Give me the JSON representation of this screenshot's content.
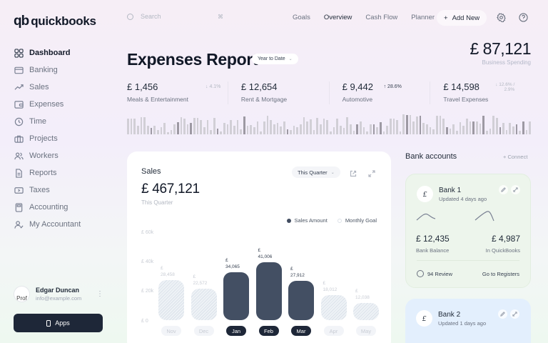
{
  "app": {
    "logo_mark": "qb",
    "logo_text": "quickbooks"
  },
  "sidebar": {
    "items": [
      {
        "label": "Dashboard",
        "icon": "grid-icon",
        "active": true
      },
      {
        "label": "Banking",
        "icon": "card-icon"
      },
      {
        "label": "Sales",
        "icon": "trend-up-icon"
      },
      {
        "label": "Expenses",
        "icon": "wallet-icon"
      },
      {
        "label": "Time",
        "icon": "clock-icon"
      },
      {
        "label": "Projects",
        "icon": "briefcase-icon"
      },
      {
        "label": "Workers",
        "icon": "users-icon"
      },
      {
        "label": "Reports",
        "icon": "document-icon"
      },
      {
        "label": "Taxes",
        "icon": "ticket-icon"
      },
      {
        "label": "Accounting",
        "icon": "calculator-icon"
      },
      {
        "label": "My Accountant",
        "icon": "user-check-icon"
      }
    ],
    "profile": {
      "name": "Edgar Duncan",
      "email": "info@example.com",
      "avatar_alt": "Prof"
    },
    "apps_label": "Apps"
  },
  "topbar": {
    "search_placeholder": "Search",
    "search_shortcut": "⌘",
    "links": [
      {
        "label": "Goals"
      },
      {
        "label": "Overview",
        "active": true
      },
      {
        "label": "Cash Flow"
      },
      {
        "label": "Planner"
      }
    ],
    "add_new_label": "Add New",
    "add_new_icon": "+"
  },
  "header": {
    "title": "Expenses Report",
    "range": "Year to Date",
    "total_value": "£ 87,121",
    "total_label": "Business Spending"
  },
  "kpis": [
    {
      "value": "£ 1,456",
      "label": "Meals & Entertainment",
      "change": "↓ 4.1%"
    },
    {
      "value": "£ 12,654",
      "label": "Rent & Mortgage",
      "change": ""
    },
    {
      "value": "£ 9,442",
      "label": "Automotive",
      "change": "↑ 28.6%"
    },
    {
      "value": "£ 14,598",
      "label": "Travel Expenses",
      "change": "↓ 12.6% / 2.9%"
    }
  ],
  "sparkbars": [
    22,
    22,
    22,
    12,
    24,
    24,
    12,
    9,
    12,
    6,
    10,
    16,
    3,
    6,
    14,
    17,
    24,
    22,
    14,
    16,
    23,
    23,
    20,
    10,
    20,
    6,
    23,
    8,
    4,
    16,
    14,
    20,
    12,
    20,
    7,
    25,
    12,
    13,
    10,
    18,
    4,
    18,
    26,
    20,
    14,
    16,
    11,
    18,
    7,
    6,
    12,
    10,
    14,
    24,
    18,
    21,
    6,
    23,
    14,
    22,
    20,
    4,
    10,
    22,
    12,
    9,
    24,
    14,
    5,
    14,
    18,
    10,
    4,
    14,
    14,
    10,
    17,
    4,
    12,
    22,
    22,
    20,
    4,
    28,
    27,
    27,
    18,
    25,
    26,
    16,
    14,
    10,
    7,
    26,
    26,
    22,
    10,
    8,
    14,
    5,
    17,
    12,
    22,
    18,
    18,
    18,
    15,
    26,
    5,
    8,
    26,
    23,
    10,
    16,
    6,
    16,
    11,
    14,
    5,
    18,
    6,
    18
  ],
  "sales": {
    "title": "Sales",
    "value": "£ 467,121",
    "subtitle": "This Quarter",
    "period": "This Quarter",
    "legend": {
      "amount": "Sales Amount",
      "goal": "Monthly Goal"
    },
    "y_ticks": [
      "£ 60k",
      "£ 40k",
      "£ 20k",
      "£ 0"
    ]
  },
  "chart_data": {
    "type": "bar",
    "title": "Sales",
    "categories": [
      "Nov",
      "Dec",
      "Jan",
      "Feb",
      "Mar",
      "Apr",
      "May"
    ],
    "series": [
      {
        "name": "Sales Amount",
        "values": [
          null,
          null,
          34065,
          41006,
          27912,
          null,
          null
        ]
      },
      {
        "name": "Monthly Goal",
        "values": [
          28458,
          22572,
          null,
          null,
          null,
          18012,
          12038
        ]
      }
    ],
    "value_labels": [
      "28,458",
      "22,572",
      "34,065",
      "41,006",
      "27,912",
      "18,012",
      "12,038"
    ],
    "currency": "£",
    "ylabel": "",
    "ylim": [
      0,
      60000
    ],
    "y_ticks": [
      "£ 0",
      "£ 20k",
      "£ 40k",
      "£ 60k"
    ],
    "legend_position": "top-right"
  },
  "bank": {
    "header": "Bank accounts",
    "connect_label": "+ Connect",
    "accounts": [
      {
        "name": "Bank 1",
        "updated": "Updated 4 days ago",
        "logo": "£",
        "balance": "£ 12,435",
        "balance_label": "Bank Balance",
        "qb": "£ 4,987",
        "qb_label": "In QuickBooks",
        "review": "94 Review",
        "registers": "Go to Registers",
        "color": "#edf5ec"
      },
      {
        "name": "Bank 2",
        "updated": "Updated 1 days ago",
        "logo": "£",
        "color": "#e3effd"
      }
    ]
  }
}
